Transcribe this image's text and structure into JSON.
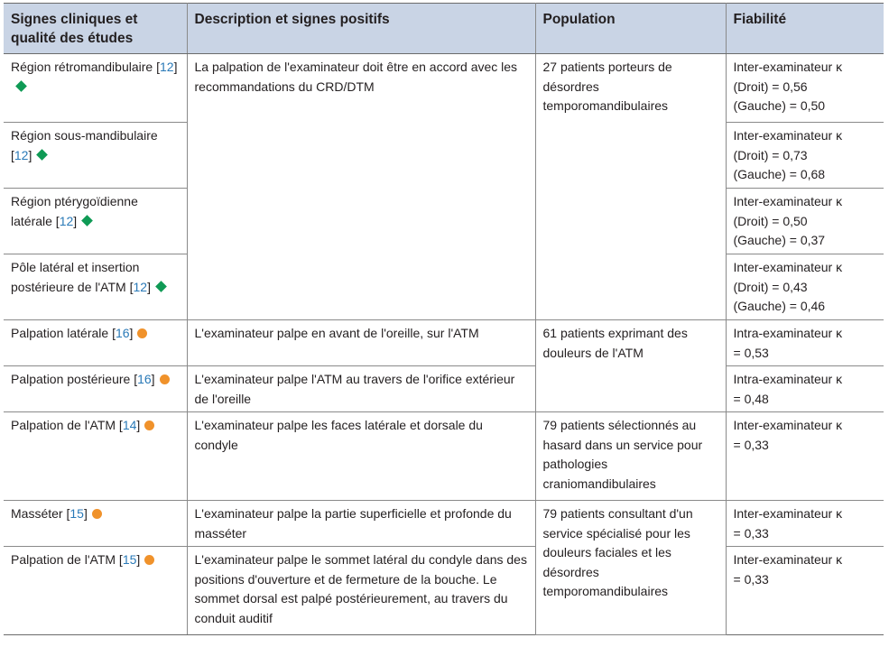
{
  "headers": {
    "col1": "Signes cliniques et qualité des études",
    "col2": "Description et signes positifs",
    "col3": "Population",
    "col4": "Fiabilité"
  },
  "rows": [
    {
      "sign": "Région rétromandibulaire",
      "ref": "12",
      "marker": "diamond",
      "description": "La palpation de l'examinateur doit être en accord avec les recommandations du CRD/DTM",
      "population": "27 patients porteurs de désordres temporomandibulaires",
      "reliability": "Inter-examinateur κ\n(Droit) = 0,56\n(Gauche) = 0,50"
    },
    {
      "sign": "Région sous-mandibulaire",
      "ref": "12",
      "marker": "diamond",
      "reliability": "Inter-examinateur κ\n(Droit) = 0,73\n(Gauche) = 0,68"
    },
    {
      "sign": "Région ptérygoïdienne latérale",
      "ref": "12",
      "marker": "diamond",
      "reliability": "Inter-examinateur κ\n(Droit) = 0,50\n(Gauche) = 0,37"
    },
    {
      "sign": "Pôle latéral et insertion postérieure de l'ATM",
      "ref": "12",
      "marker": "diamond",
      "reliability": "Inter-examinateur κ\n(Droit) = 0,43\n(Gauche) = 0,46"
    },
    {
      "sign": "Palpation latérale",
      "ref": "16",
      "marker": "dot",
      "description": "L'examinateur palpe en avant de l'oreille, sur l'ATM",
      "population": "61 patients exprimant des douleurs de l'ATM",
      "reliability": "Intra-examinateur κ\n= 0,53"
    },
    {
      "sign": "Palpation postérieure",
      "ref": "16",
      "marker": "dot",
      "description": "L'examinateur palpe l'ATM au travers de l'orifice extérieur de l'oreille",
      "reliability": "Intra-examinateur κ\n= 0,48"
    },
    {
      "sign": "Palpation de l'ATM",
      "ref": "14",
      "marker": "dot",
      "description": "L'examinateur palpe les faces latérale et dorsale du condyle",
      "population": "79 patients sélectionnés au hasard dans un service pour pathologies craniomandibulaires",
      "reliability": "Inter-examinateur κ\n= 0,33"
    },
    {
      "sign": "Masséter",
      "ref": "15",
      "marker": "dot",
      "description": "L'examinateur palpe la partie superficielle et profonde du masséter",
      "population": "79 patients consultant d'un service spécialisé pour les douleurs faciales et les désordres temporomandibulaires",
      "reliability": "Inter-examinateur κ\n= 0,33"
    },
    {
      "sign": "Palpation de l'ATM",
      "ref": "15",
      "marker": "dot",
      "description": "L'examinateur palpe le sommet latéral du condyle dans des positions d'ouverture et de fermeture de la bouche. Le sommet dorsal est palpé postérieurement, au travers du conduit auditif",
      "reliability": "Inter-examinateur κ\n= 0,33"
    }
  ],
  "colors": {
    "header_bg": "#c9d4e5",
    "ref_link": "#2a7ab8",
    "diamond": "#0f9a55",
    "dot": "#f0922b",
    "border": "#8a8a8a"
  }
}
